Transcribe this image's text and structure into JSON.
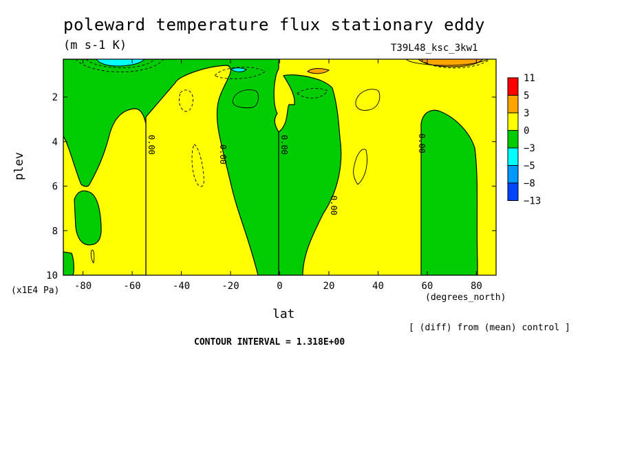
{
  "chart_data": {
    "type": "heatmap",
    "title": "poleward temperature flux stationary eddy",
    "units_label": "(m s-1 K)",
    "run_label": "T39L48_ksc_3kw1",
    "xlabel": "lat",
    "x_units": "(degrees_north)",
    "ylabel": "plev",
    "y_units": "(x1E4 Pa)",
    "xlim": [
      -88,
      88
    ],
    "ylim": [
      10,
      0.3
    ],
    "x_ticks": [
      -80,
      -60,
      -40,
      -20,
      0,
      20,
      40,
      60,
      80
    ],
    "x_tick_labels": [
      "-80",
      "-60",
      "-40",
      "-20",
      "0",
      "20",
      "40",
      "60",
      "80"
    ],
    "y_ticks": [
      2,
      4,
      6,
      8,
      10
    ],
    "y_tick_labels": [
      "2",
      "4",
      "6",
      "8",
      "10"
    ],
    "contour_interval_text": "CONTOUR INTERVAL = 1.318E+00",
    "comparison_text": "[ (diff) from (mean) control ]",
    "contour_labels": [
      "0.00",
      "0.00",
      "0.00",
      "0.00",
      "0.00"
    ],
    "colorbar": {
      "levels": [
        "11",
        "5",
        "3",
        "0",
        "−3",
        "−5",
        "−8",
        "−13"
      ],
      "colors": [
        "#ff0000",
        "#ffa500",
        "#ffff00",
        "#00cc00",
        "#00ffff",
        "#0099ff",
        "#0044ff"
      ]
    },
    "positive_regions": [
      {
        "lat_range": [
          -88,
          -82
        ],
        "plev_range": [
          3.6,
          10
        ],
        "class": "0 to 3"
      },
      {
        "lat_range": [
          -75,
          -57
        ],
        "plev_range": [
          2.5,
          10
        ],
        "class": "0 to 3"
      },
      {
        "lat_range": [
          -25,
          -5
        ],
        "plev_range": [
          1.0,
          10
        ],
        "class": "0 to 3"
      },
      {
        "lat_range": [
          -3,
          88
        ],
        "plev_range": [
          0.3,
          10
        ],
        "class": "0 to 3"
      },
      {
        "lat_range": [
          12,
          23
        ],
        "plev_range": [
          0.45,
          0.8
        ],
        "class": "3 to 5"
      },
      {
        "lat_range": [
          56,
          86
        ],
        "plev_range": [
          0.3,
          0.6
        ],
        "class": "3 to 5"
      }
    ],
    "negative_regions": [
      {
        "lat_range": [
          -52,
          5
        ],
        "plev_range": [
          0.3,
          10
        ],
        "class": "-3 to 0"
      },
      {
        "lat_range": [
          2,
          12
        ],
        "plev_range": [
          0.6,
          10
        ],
        "class": "-3 to 0"
      },
      {
        "lat_range": [
          55,
          86
        ],
        "plev_range": [
          2.4,
          10
        ],
        "class": "-3 to 0"
      },
      {
        "lat_range": [
          -82,
          -72
        ],
        "plev_range": [
          6.0,
          8.6
        ],
        "class": "-3 to 0"
      },
      {
        "lat_range": [
          -82,
          -70
        ],
        "plev_range": [
          0.3,
          0.45
        ],
        "class": "-5 to -3"
      },
      {
        "lat_range": [
          -21,
          -14
        ],
        "plev_range": [
          0.55,
          0.75
        ],
        "class": "-5 to -3"
      }
    ]
  }
}
